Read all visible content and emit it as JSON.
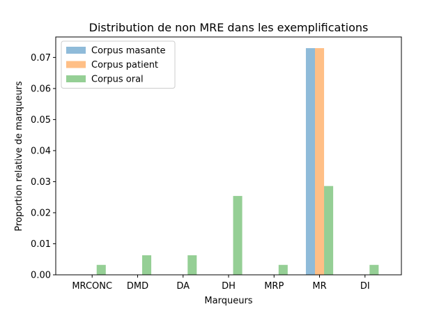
{
  "chart_data": {
    "type": "bar",
    "title": "Distribution de non MRE dans les exemplifications",
    "xlabel": "Marqueurs",
    "ylabel": "Proportion relative de marqueurs",
    "categories": [
      "MRCONC",
      "DMD",
      "DA",
      "DH",
      "MRP",
      "MR",
      "DI"
    ],
    "series": [
      {
        "name": "Corpus masante",
        "color": "#1f77b4",
        "values": [
          0,
          0,
          0,
          0,
          0,
          0.073,
          0
        ]
      },
      {
        "name": "Corpus patient",
        "color": "#ff7f0e",
        "values": [
          0,
          0,
          0,
          0,
          0,
          0.073,
          0
        ]
      },
      {
        "name": "Corpus oral",
        "color": "#2ca02c",
        "values": [
          0.0032,
          0.0063,
          0.0063,
          0.0254,
          0.0032,
          0.0286,
          0.0032
        ]
      }
    ],
    "bar_alpha": 0.5,
    "ylim": [
      0,
      0.0766
    ],
    "yticks": [
      0.0,
      0.01,
      0.02,
      0.03,
      0.04,
      0.05,
      0.06,
      0.07
    ],
    "ytick_labels": [
      "0.00",
      "0.01",
      "0.02",
      "0.03",
      "0.04",
      "0.05",
      "0.06",
      "0.07"
    ],
    "legend_position": "top-left",
    "grid": false
  }
}
